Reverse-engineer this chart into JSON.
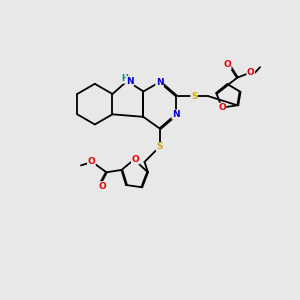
{
  "background_color": "#e8e8e8",
  "figsize": [
    3.0,
    3.0
  ],
  "dpi": 100,
  "atom_colors": {
    "C": "#000000",
    "N": "#0000cd",
    "O": "#dd0000",
    "S": "#ccaa00",
    "H": "#008888"
  },
  "bond_color": "#000000",
  "bond_lw": 1.3,
  "xlim": [
    0,
    10
  ],
  "ylim": [
    0,
    10
  ]
}
